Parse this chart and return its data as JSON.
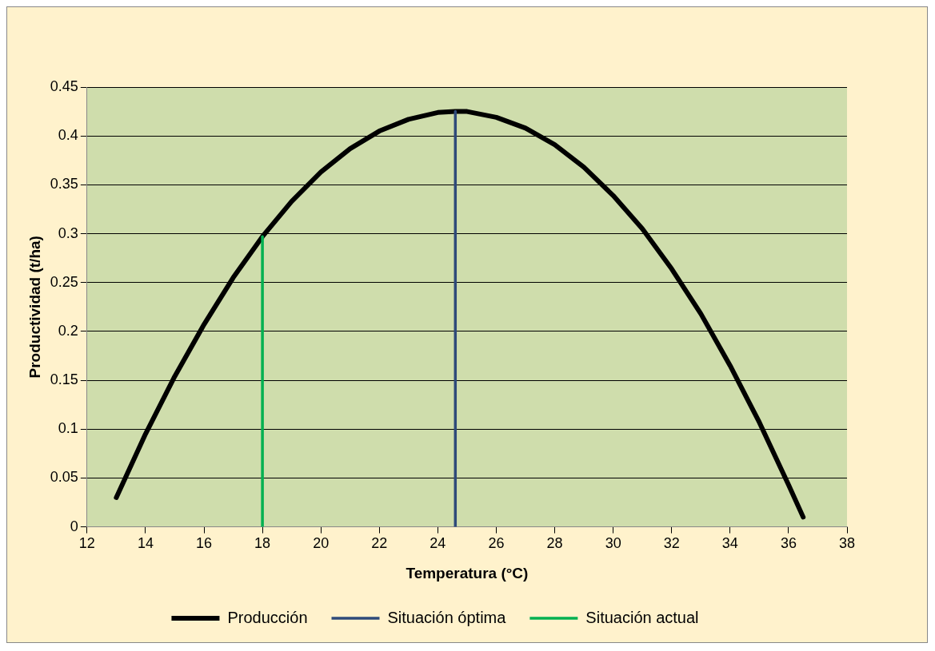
{
  "chart_data": {
    "type": "line",
    "xlabel": "Temperatura (°C)",
    "ylabel": "Productividad (t/ha)",
    "xlim": [
      12,
      38
    ],
    "xticks": [
      12,
      14,
      16,
      18,
      20,
      22,
      24,
      26,
      28,
      30,
      32,
      34,
      36,
      38
    ],
    "ylim": [
      0,
      0.45
    ],
    "yticks": [
      0,
      0.05,
      0.1,
      0.15,
      0.2,
      0.25,
      0.3,
      0.35,
      0.4,
      0.45
    ],
    "grid": "y",
    "legend": "bottom",
    "marker": "none",
    "line_style": "solid",
    "series": [
      {
        "name": "Producción",
        "color": "#000000",
        "x": [
          13,
          14,
          15,
          16,
          17,
          18,
          19,
          20,
          21,
          22,
          23,
          24,
          24.6,
          25,
          26,
          27,
          28,
          29,
          30,
          31,
          32,
          33,
          34,
          35,
          36,
          36.5
        ],
        "values": [
          0.03,
          0.095,
          0.154,
          0.207,
          0.255,
          0.297,
          0.333,
          0.363,
          0.387,
          0.405,
          0.417,
          0.424,
          0.425,
          0.425,
          0.419,
          0.408,
          0.391,
          0.368,
          0.339,
          0.305,
          0.264,
          0.218,
          0.165,
          0.107,
          0.043,
          0.01
        ]
      },
      {
        "name": "Situación óptima",
        "color": "#2e4a7a",
        "x": [
          24.6,
          24.6
        ],
        "values": [
          0,
          0.425
        ]
      },
      {
        "name": "Situación actual",
        "color": "#00b050",
        "x": [
          18,
          18
        ],
        "values": [
          0,
          0.297
        ]
      }
    ]
  }
}
